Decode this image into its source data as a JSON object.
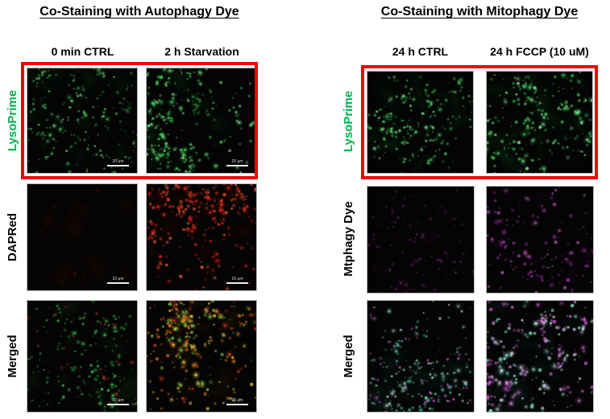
{
  "figure": {
    "highlight_box_color": "#f20000",
    "panels": [
      {
        "title": "Co-Staining with Autophagy Dye",
        "columns": [
          "0 min CTRL",
          "2 h Starvation"
        ],
        "rows": [
          {
            "label": "LysoPrime",
            "label_color": "#00b050",
            "channel_color": "#2fd95c",
            "highlighted": true
          },
          {
            "label": "DAPRed",
            "label_color": "#000000",
            "channel_color": "#e0301e",
            "highlighted": false
          },
          {
            "label": "Merged",
            "label_color": "#000000",
            "channel_color": "#e8a030",
            "highlighted": false
          }
        ],
        "scale_bar": "20 μm"
      },
      {
        "title": "Co-Staining with Mitophagy Dye",
        "columns": [
          "24 h CTRL",
          "24 h FCCP (10 uM)"
        ],
        "rows": [
          {
            "label": "LysoPrime",
            "label_color": "#00b050",
            "channel_color": "#2fd95c",
            "highlighted": true
          },
          {
            "label": "Mtphagy Dye",
            "label_color": "#000000",
            "channel_color": "#c840c8",
            "highlighted": false
          },
          {
            "label": "Merged",
            "label_color": "#000000",
            "channel_color": "#bfeee4",
            "highlighted": false
          }
        ]
      }
    ]
  }
}
